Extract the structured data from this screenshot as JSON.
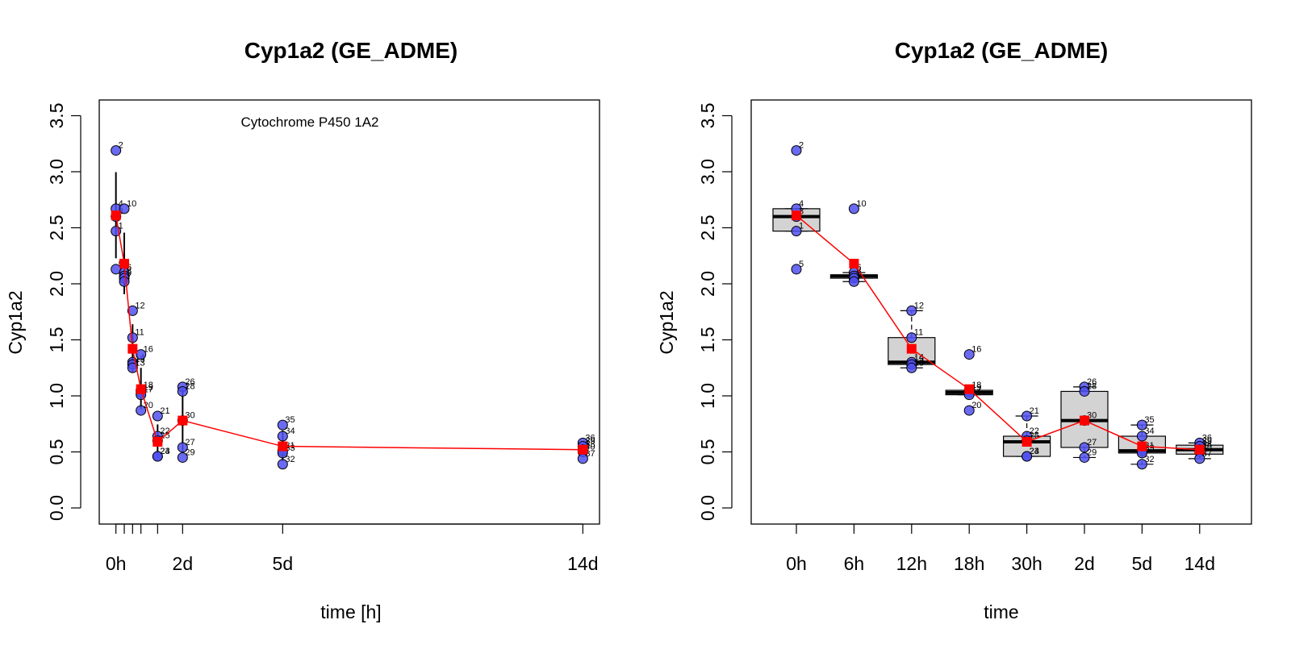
{
  "chart_data": [
    {
      "type": "scatter",
      "title": "Cyp1a2 (GE_ADME)",
      "xlabel": "time [h]",
      "ylabel": "Cyp1a2",
      "annotation": "Cytochrome P450 1A2",
      "ylim": [
        0,
        3.5
      ],
      "yticks": [
        "0.0",
        "0.5",
        "1.0",
        "1.5",
        "2.0",
        "2.5",
        "3.0",
        "3.5"
      ],
      "xlim": [
        -12,
        348
      ],
      "xtick_labels": [
        {
          "x": 0,
          "label": "0h"
        },
        {
          "x": 48,
          "label": "2d"
        },
        {
          "x": 120,
          "label": "5d"
        },
        {
          "x": 336,
          "label": "14d"
        }
      ],
      "minor_xticks": [
        0,
        6,
        12,
        18,
        30,
        48,
        120,
        336
      ],
      "grid": false,
      "points": [
        {
          "x": 0,
          "y": 3.19,
          "label": "2"
        },
        {
          "x": 0,
          "y": 2.67,
          "label": "4"
        },
        {
          "x": 0,
          "y": 2.6,
          "label": "3"
        },
        {
          "x": 0,
          "y": 2.47,
          "label": "1"
        },
        {
          "x": 0,
          "y": 2.13,
          "label": "5"
        },
        {
          "x": 6,
          "y": 2.67,
          "label": "10"
        },
        {
          "x": 6,
          "y": 2.1,
          "label": "6"
        },
        {
          "x": 6,
          "y": 2.07,
          "label": "8"
        },
        {
          "x": 6,
          "y": 2.05,
          "label": "9"
        },
        {
          "x": 6,
          "y": 2.02,
          "label": "7"
        },
        {
          "x": 12,
          "y": 1.76,
          "label": "12"
        },
        {
          "x": 12,
          "y": 1.52,
          "label": "11"
        },
        {
          "x": 12,
          "y": 1.3,
          "label": "14"
        },
        {
          "x": 12,
          "y": 1.28,
          "label": "15"
        },
        {
          "x": 12,
          "y": 1.25,
          "label": "13"
        },
        {
          "x": 18,
          "y": 1.37,
          "label": "16"
        },
        {
          "x": 18,
          "y": 1.05,
          "label": "18"
        },
        {
          "x": 18,
          "y": 1.03,
          "label": "19"
        },
        {
          "x": 18,
          "y": 1.01,
          "label": "17"
        },
        {
          "x": 18,
          "y": 0.87,
          "label": "20"
        },
        {
          "x": 30,
          "y": 0.82,
          "label": "21"
        },
        {
          "x": 30,
          "y": 0.64,
          "label": "22"
        },
        {
          "x": 30,
          "y": 0.6,
          "label": "25"
        },
        {
          "x": 30,
          "y": 0.46,
          "label": "24"
        },
        {
          "x": 30,
          "y": 0.46,
          "label": "23"
        },
        {
          "x": 48,
          "y": 1.08,
          "label": "26"
        },
        {
          "x": 48,
          "y": 1.04,
          "label": "28"
        },
        {
          "x": 48,
          "y": 0.78,
          "label": "30"
        },
        {
          "x": 48,
          "y": 0.54,
          "label": "27"
        },
        {
          "x": 48,
          "y": 0.45,
          "label": "29"
        },
        {
          "x": 120,
          "y": 0.74,
          "label": "35"
        },
        {
          "x": 120,
          "y": 0.64,
          "label": "34"
        },
        {
          "x": 120,
          "y": 0.51,
          "label": "31"
        },
        {
          "x": 120,
          "y": 0.49,
          "label": "33"
        },
        {
          "x": 120,
          "y": 0.39,
          "label": "32"
        },
        {
          "x": 336,
          "y": 0.58,
          "label": "36"
        },
        {
          "x": 336,
          "y": 0.55,
          "label": "39"
        },
        {
          "x": 336,
          "y": 0.52,
          "label": "38"
        },
        {
          "x": 336,
          "y": 0.5,
          "label": "40"
        },
        {
          "x": 336,
          "y": 0.44,
          "label": "37"
        }
      ],
      "mean_series": {
        "x": [
          0,
          6,
          12,
          18,
          30,
          48,
          120,
          336
        ],
        "y": [
          2.61,
          2.18,
          1.42,
          1.06,
          0.59,
          0.78,
          0.55,
          0.52
        ]
      },
      "colors": {
        "points": "#5050f0",
        "mean": "#ff0000",
        "sd": "#000000"
      }
    },
    {
      "type": "box",
      "title": "Cyp1a2 (GE_ADME)",
      "xlabel": "time",
      "ylabel": "Cyp1a2",
      "ylim": [
        0,
        3.5
      ],
      "yticks": [
        "0.0",
        "0.5",
        "1.0",
        "1.5",
        "2.0",
        "2.5",
        "3.0",
        "3.5"
      ],
      "categories": [
        "0h",
        "6h",
        "12h",
        "18h",
        "30h",
        "2d",
        "5d",
        "14d"
      ],
      "grid": false,
      "boxes": [
        {
          "q1": 2.47,
          "median": 2.6,
          "q3": 2.67,
          "whisker_low": 2.47,
          "whisker_high": 2.67
        },
        {
          "q1": 2.05,
          "median": 2.07,
          "q3": 2.08,
          "whisker_low": 2.02,
          "whisker_high": 2.1
        },
        {
          "q1": 1.28,
          "median": 1.3,
          "q3": 1.52,
          "whisker_low": 1.25,
          "whisker_high": 1.76
        },
        {
          "q1": 1.01,
          "median": 1.03,
          "q3": 1.05,
          "whisker_low": 1.01,
          "whisker_high": 1.05
        },
        {
          "q1": 0.46,
          "median": 0.59,
          "q3": 0.64,
          "whisker_low": 0.46,
          "whisker_high": 0.82
        },
        {
          "q1": 0.54,
          "median": 0.78,
          "q3": 1.04,
          "whisker_low": 0.45,
          "whisker_high": 1.08
        },
        {
          "q1": 0.49,
          "median": 0.51,
          "q3": 0.64,
          "whisker_low": 0.39,
          "whisker_high": 0.74
        },
        {
          "q1": 0.48,
          "median": 0.52,
          "q3": 0.56,
          "whisker_low": 0.44,
          "whisker_high": 0.58
        }
      ],
      "points": [
        {
          "cat": 0,
          "y": 3.19,
          "label": "2"
        },
        {
          "cat": 0,
          "y": 2.67,
          "label": "4"
        },
        {
          "cat": 0,
          "y": 2.6,
          "label": "3"
        },
        {
          "cat": 0,
          "y": 2.47,
          "label": "1"
        },
        {
          "cat": 0,
          "y": 2.13,
          "label": "5"
        },
        {
          "cat": 1,
          "y": 2.67,
          "label": "10"
        },
        {
          "cat": 1,
          "y": 2.1,
          "label": "6"
        },
        {
          "cat": 1,
          "y": 2.07,
          "label": "8"
        },
        {
          "cat": 1,
          "y": 2.05,
          "label": "9"
        },
        {
          "cat": 1,
          "y": 2.02,
          "label": "7"
        },
        {
          "cat": 2,
          "y": 1.76,
          "label": "12"
        },
        {
          "cat": 2,
          "y": 1.52,
          "label": "11"
        },
        {
          "cat": 2,
          "y": 1.3,
          "label": "14"
        },
        {
          "cat": 2,
          "y": 1.28,
          "label": "15"
        },
        {
          "cat": 2,
          "y": 1.25,
          "label": "13"
        },
        {
          "cat": 3,
          "y": 1.37,
          "label": "16"
        },
        {
          "cat": 3,
          "y": 1.05,
          "label": "18"
        },
        {
          "cat": 3,
          "y": 1.03,
          "label": "19"
        },
        {
          "cat": 3,
          "y": 1.01,
          "label": "17"
        },
        {
          "cat": 3,
          "y": 0.87,
          "label": "20"
        },
        {
          "cat": 4,
          "y": 0.82,
          "label": "21"
        },
        {
          "cat": 4,
          "y": 0.64,
          "label": "22"
        },
        {
          "cat": 4,
          "y": 0.6,
          "label": "25"
        },
        {
          "cat": 4,
          "y": 0.46,
          "label": "24"
        },
        {
          "cat": 4,
          "y": 0.46,
          "label": "23"
        },
        {
          "cat": 5,
          "y": 1.08,
          "label": "26"
        },
        {
          "cat": 5,
          "y": 1.04,
          "label": "28"
        },
        {
          "cat": 5,
          "y": 0.78,
          "label": "30"
        },
        {
          "cat": 5,
          "y": 0.54,
          "label": "27"
        },
        {
          "cat": 5,
          "y": 0.45,
          "label": "29"
        },
        {
          "cat": 6,
          "y": 0.74,
          "label": "35"
        },
        {
          "cat": 6,
          "y": 0.64,
          "label": "34"
        },
        {
          "cat": 6,
          "y": 0.51,
          "label": "31"
        },
        {
          "cat": 6,
          "y": 0.49,
          "label": "33"
        },
        {
          "cat": 6,
          "y": 0.39,
          "label": "32"
        },
        {
          "cat": 7,
          "y": 0.58,
          "label": "36"
        },
        {
          "cat": 7,
          "y": 0.55,
          "label": "39"
        },
        {
          "cat": 7,
          "y": 0.52,
          "label": "38"
        },
        {
          "cat": 7,
          "y": 0.5,
          "label": "40"
        },
        {
          "cat": 7,
          "y": 0.44,
          "label": "37"
        }
      ],
      "mean_series": [
        2.61,
        2.18,
        1.42,
        1.06,
        0.59,
        0.78,
        0.55,
        0.52
      ],
      "colors": {
        "points": "#5050f0",
        "mean": "#ff0000",
        "box_fill": "#d3d3d3"
      }
    }
  ]
}
